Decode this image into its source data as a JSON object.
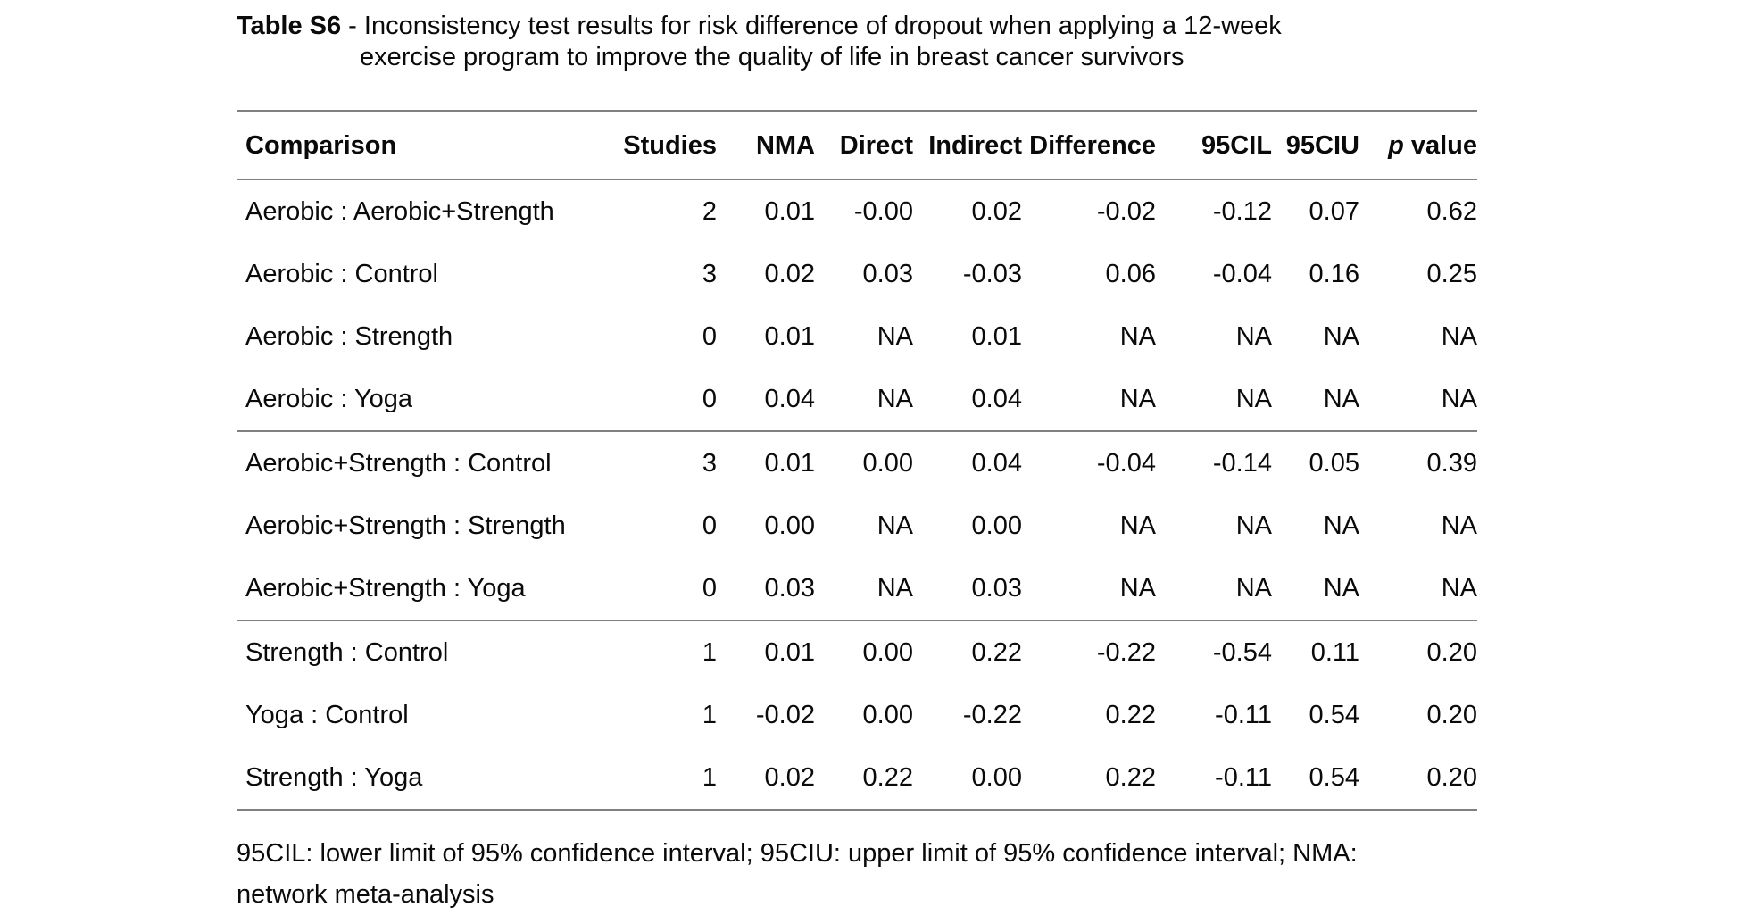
{
  "colors": {
    "background": "#ffffff",
    "text": "#0a0a0a",
    "rule": "#808080"
  },
  "title": {
    "prefix": "Table S6",
    "line1_rest": " - Inconsistency test results for risk difference of dropout when applying a 12-week",
    "line2": "exercise program to improve the quality of life in breast cancer survivors"
  },
  "table": {
    "columns": [
      {
        "key": "comparison",
        "label": "Comparison"
      },
      {
        "key": "studies",
        "label": "Studies"
      },
      {
        "key": "nma",
        "label": "NMA"
      },
      {
        "key": "direct",
        "label": "Direct"
      },
      {
        "key": "indirect",
        "label": "Indirect"
      },
      {
        "key": "difference",
        "label": "Difference"
      },
      {
        "key": "cil",
        "label": "95CIL"
      },
      {
        "key": "ciu",
        "label": "95CIU"
      },
      {
        "key": "pvalue",
        "label_parts": [
          {
            "text": "p",
            "italic": true
          },
          {
            "text": " value",
            "italic": false
          }
        ]
      }
    ],
    "groups": [
      [
        [
          "Aerobic : Aerobic+Strength",
          "2",
          "0.01",
          "-0.00",
          "0.02",
          "-0.02",
          "-0.12",
          "0.07",
          "0.62"
        ],
        [
          "Aerobic : Control",
          "3",
          "0.02",
          "0.03",
          "-0.03",
          "0.06",
          "-0.04",
          "0.16",
          "0.25"
        ],
        [
          "Aerobic : Strength",
          "0",
          "0.01",
          "NA",
          "0.01",
          "NA",
          "NA",
          "NA",
          "NA"
        ],
        [
          "Aerobic : Yoga",
          "0",
          "0.04",
          "NA",
          "0.04",
          "NA",
          "NA",
          "NA",
          "NA"
        ]
      ],
      [
        [
          "Aerobic+Strength : Control",
          "3",
          "0.01",
          "0.00",
          "0.04",
          "-0.04",
          "-0.14",
          "0.05",
          "0.39"
        ],
        [
          "Aerobic+Strength : Strength",
          "0",
          "0.00",
          "NA",
          "0.00",
          "NA",
          "NA",
          "NA",
          "NA"
        ],
        [
          "Aerobic+Strength : Yoga",
          "0",
          "0.03",
          "NA",
          "0.03",
          "NA",
          "NA",
          "NA",
          "NA"
        ]
      ],
      [
        [
          "Strength : Control",
          "1",
          "0.01",
          "0.00",
          "0.22",
          "-0.22",
          "-0.54",
          "0.11",
          "0.20"
        ],
        [
          "Yoga : Control",
          "1",
          "-0.02",
          "0.00",
          "-0.22",
          "0.22",
          "-0.11",
          "0.54",
          "0.20"
        ],
        [
          "Strength : Yoga",
          "1",
          "0.02",
          "0.22",
          "0.00",
          "0.22",
          "-0.11",
          "0.54",
          "0.20"
        ]
      ]
    ]
  },
  "footnote": {
    "lines": [
      "95CIL: lower limit of 95% confidence interval; 95CIU: upper limit of 95% confidence interval; NMA:",
      "network meta-analysis"
    ]
  }
}
